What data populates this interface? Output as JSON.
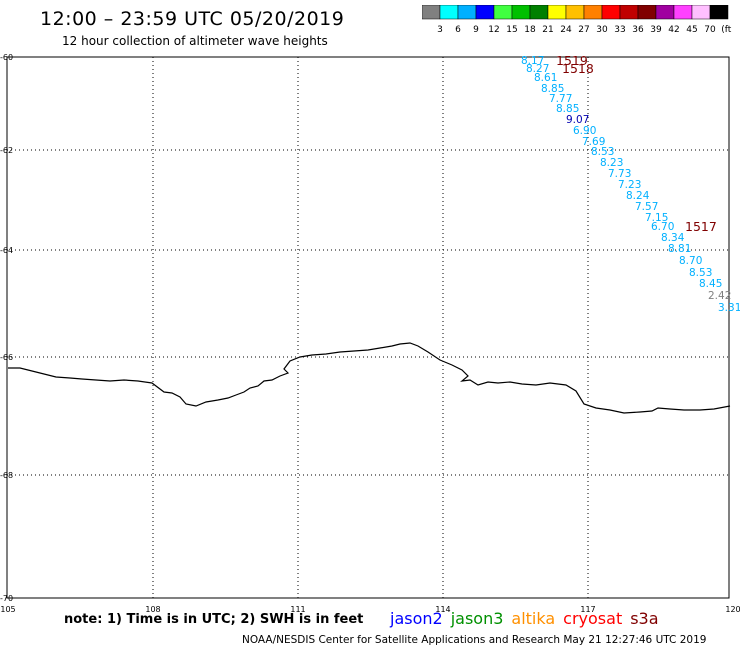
{
  "header": {
    "title": "12:00 – 23:59 UTC 05/20/2019",
    "subtitle": "12 hour collection of altimeter wave heights"
  },
  "colorbar": {
    "colors": [
      "#808080",
      "#00ffff",
      "#00b0ff",
      "#0000ff",
      "#40ff40",
      "#00c000",
      "#008000",
      "#ffff00",
      "#ffc000",
      "#ff8000",
      "#ff0000",
      "#c00000",
      "#800000",
      "#a000a0",
      "#ff40ff",
      "#ffc0ff",
      "#000000"
    ],
    "labels": [
      "3",
      "6",
      "9",
      "12",
      "15",
      "18",
      "21",
      "24",
      "27",
      "30",
      "33",
      "36",
      "39",
      "42",
      "45",
      "70",
      "(ft)"
    ]
  },
  "axes": {
    "lat_labels": [
      "-60",
      "-62",
      "-64",
      "-66",
      "-68",
      "-70"
    ],
    "lon_labels": [
      "105",
      "108",
      "111",
      "114",
      "117",
      "120"
    ]
  },
  "labels": {
    "track1": [
      "8.17",
      "8.27",
      "8.61",
      "8.85",
      "7.77",
      "8.85",
      "9.07",
      "6.90",
      "7.69",
      "8.53",
      "8.23",
      "7.73",
      "7.23",
      "8.24",
      "7.57",
      "7.15",
      "6.70",
      "8.34",
      "8.81",
      "8.70",
      "8.53",
      "8.45",
      "2.42",
      "3.31"
    ],
    "track1_colors": [
      "#00b0ff",
      "#00b0ff",
      "#00b0ff",
      "#00b0ff",
      "#00b0ff",
      "#00b0ff",
      "#0000b0",
      "#00b0ff",
      "#00b0ff",
      "#00b0ff",
      "#00b0ff",
      "#00b0ff",
      "#00b0ff",
      "#00b0ff",
      "#00b0ff",
      "#00b0ff",
      "#00b0ff",
      "#00b0ff",
      "#00b0ff",
      "#00b0ff",
      "#00b0ff",
      "#00b0ff",
      "#808080",
      "#00b0ff"
    ],
    "time_labels": [
      "1519",
      "1518",
      "1517"
    ],
    "time_color": "#800000"
  },
  "footer": {
    "note": "note: 1) Time is in UTC; 2) SWH is in feet",
    "credit": "NOAA/NESDIS Center for Satellite Applications and Research    May 21 12:27:46 UTC 2019",
    "satellites": [
      {
        "name": "jason2",
        "color": "#0000ff"
      },
      {
        "name": "jason3",
        "color": "#009000"
      },
      {
        "name": "altika",
        "color": "#ff9000"
      },
      {
        "name": "cryosat",
        "color": "#ff0000"
      },
      {
        "name": "s3a",
        "color": "#800000"
      }
    ]
  }
}
